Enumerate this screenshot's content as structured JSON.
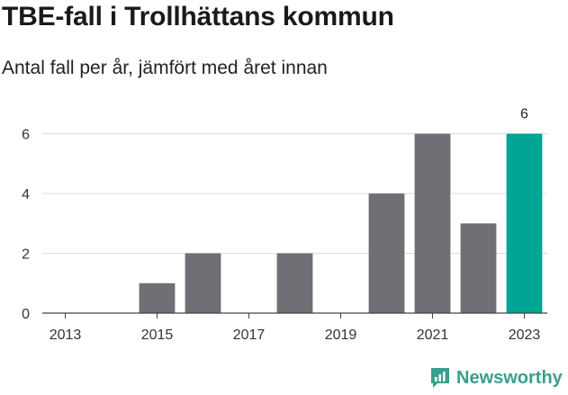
{
  "chart_data": {
    "type": "bar",
    "title": "TBE-fall i Trollhättans kommun",
    "subtitle": "Antal fall per år, jämfört med året innan",
    "categories": [
      "2013",
      "2014",
      "2015",
      "2016",
      "2017",
      "2018",
      "2019",
      "2020",
      "2021",
      "2022",
      "2023"
    ],
    "values": [
      0,
      0,
      1,
      2,
      0,
      2,
      0,
      4,
      6,
      3,
      6
    ],
    "x_tick_labels": [
      "2013",
      "2015",
      "2017",
      "2019",
      "2021",
      "2023"
    ],
    "y_ticks": [
      0,
      2,
      4,
      6
    ],
    "ylim": [
      0,
      6.2
    ],
    "highlight_category": "2023",
    "data_labels": [
      {
        "category": "2023",
        "text": "6"
      }
    ],
    "bar_color": "#706f75",
    "highlight_color": "#00a596",
    "grid": true
  },
  "brand": {
    "name": "Newsworthy",
    "icon": "newsworthy-logo-icon",
    "color": "#3a9f8e"
  }
}
